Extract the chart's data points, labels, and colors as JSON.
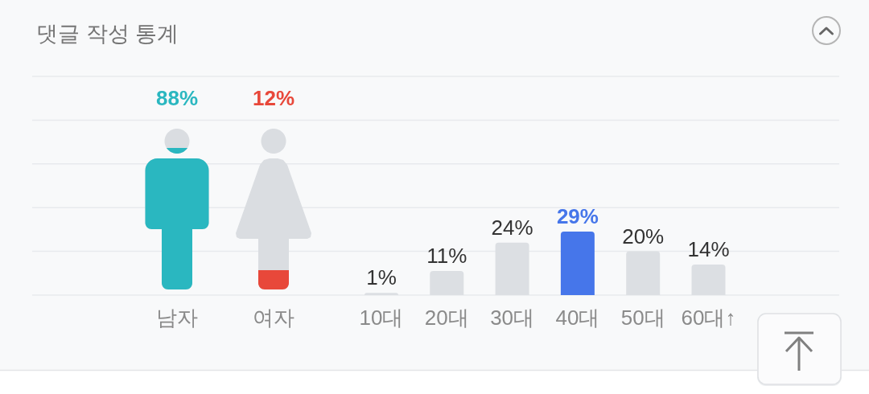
{
  "chart_data": [
    {
      "type": "other",
      "title": "댓글 작성 통계",
      "categories": [
        "남자",
        "여자"
      ],
      "values": [
        88,
        12
      ],
      "colors": [
        "#2ab7c0",
        "#e8483a"
      ],
      "value_labels": [
        "88%",
        "12%"
      ]
    },
    {
      "type": "bar",
      "categories": [
        "10대",
        "20대",
        "30대",
        "40대",
        "50대",
        "60대↑"
      ],
      "values": [
        1,
        11,
        24,
        29,
        20,
        14
      ],
      "colors": [
        "#dcdfe3",
        "#dcdfe3",
        "#dcdfe3",
        "#4676ea",
        "#dcdfe3",
        "#dcdfe3"
      ],
      "value_labels": [
        "1%",
        "11%",
        "24%",
        "29%",
        "20%",
        "14%"
      ],
      "ylim": [
        0,
        100
      ],
      "yticks": [
        {
          "value": 0,
          "label": null
        },
        {
          "value": 20,
          "label": null
        },
        {
          "value": 40,
          "label": null
        },
        {
          "value": 60,
          "label": null
        },
        {
          "value": 80,
          "label": null
        },
        {
          "value": 100,
          "label": null
        }
      ],
      "grid": "y"
    }
  ]
}
